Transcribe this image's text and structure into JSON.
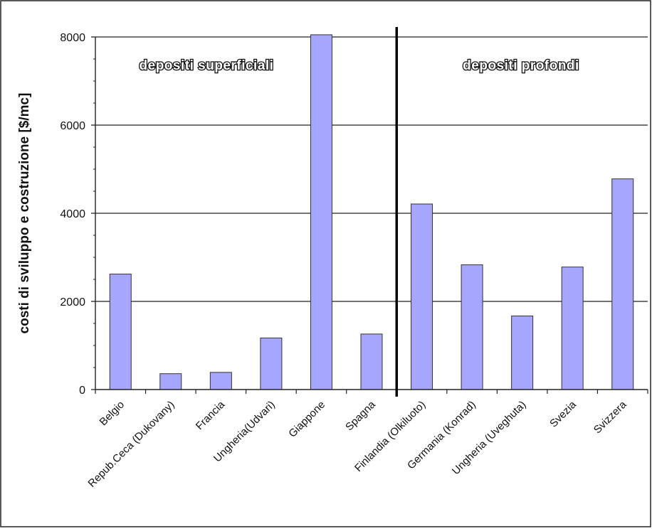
{
  "chart_data": {
    "type": "bar",
    "ylabel": "costi di sviluppo e costruzione [$/mc]",
    "ylim": [
      0,
      8000
    ],
    "yticks": [
      0,
      2000,
      4000,
      6000,
      8000
    ],
    "grid": true,
    "bar_color": "#a6a6ff",
    "categories": [
      "Belgio",
      "Repub.Ceca (Dukovany)",
      "Francia",
      "Ungheria(Udvari)",
      "Giappone",
      "Spagna",
      "Finlandia (Olkiluoto)",
      "Germania (Konrad)",
      "Ungheria (Uveghuta)",
      "Svezia",
      "Svizzera"
    ],
    "values": [
      2620,
      360,
      390,
      1170,
      8050,
      1260,
      4210,
      2830,
      1670,
      2780,
      4780
    ],
    "annotations": [
      "depositi superficiali",
      "depositi profondi"
    ],
    "divider_after_index": 5
  }
}
